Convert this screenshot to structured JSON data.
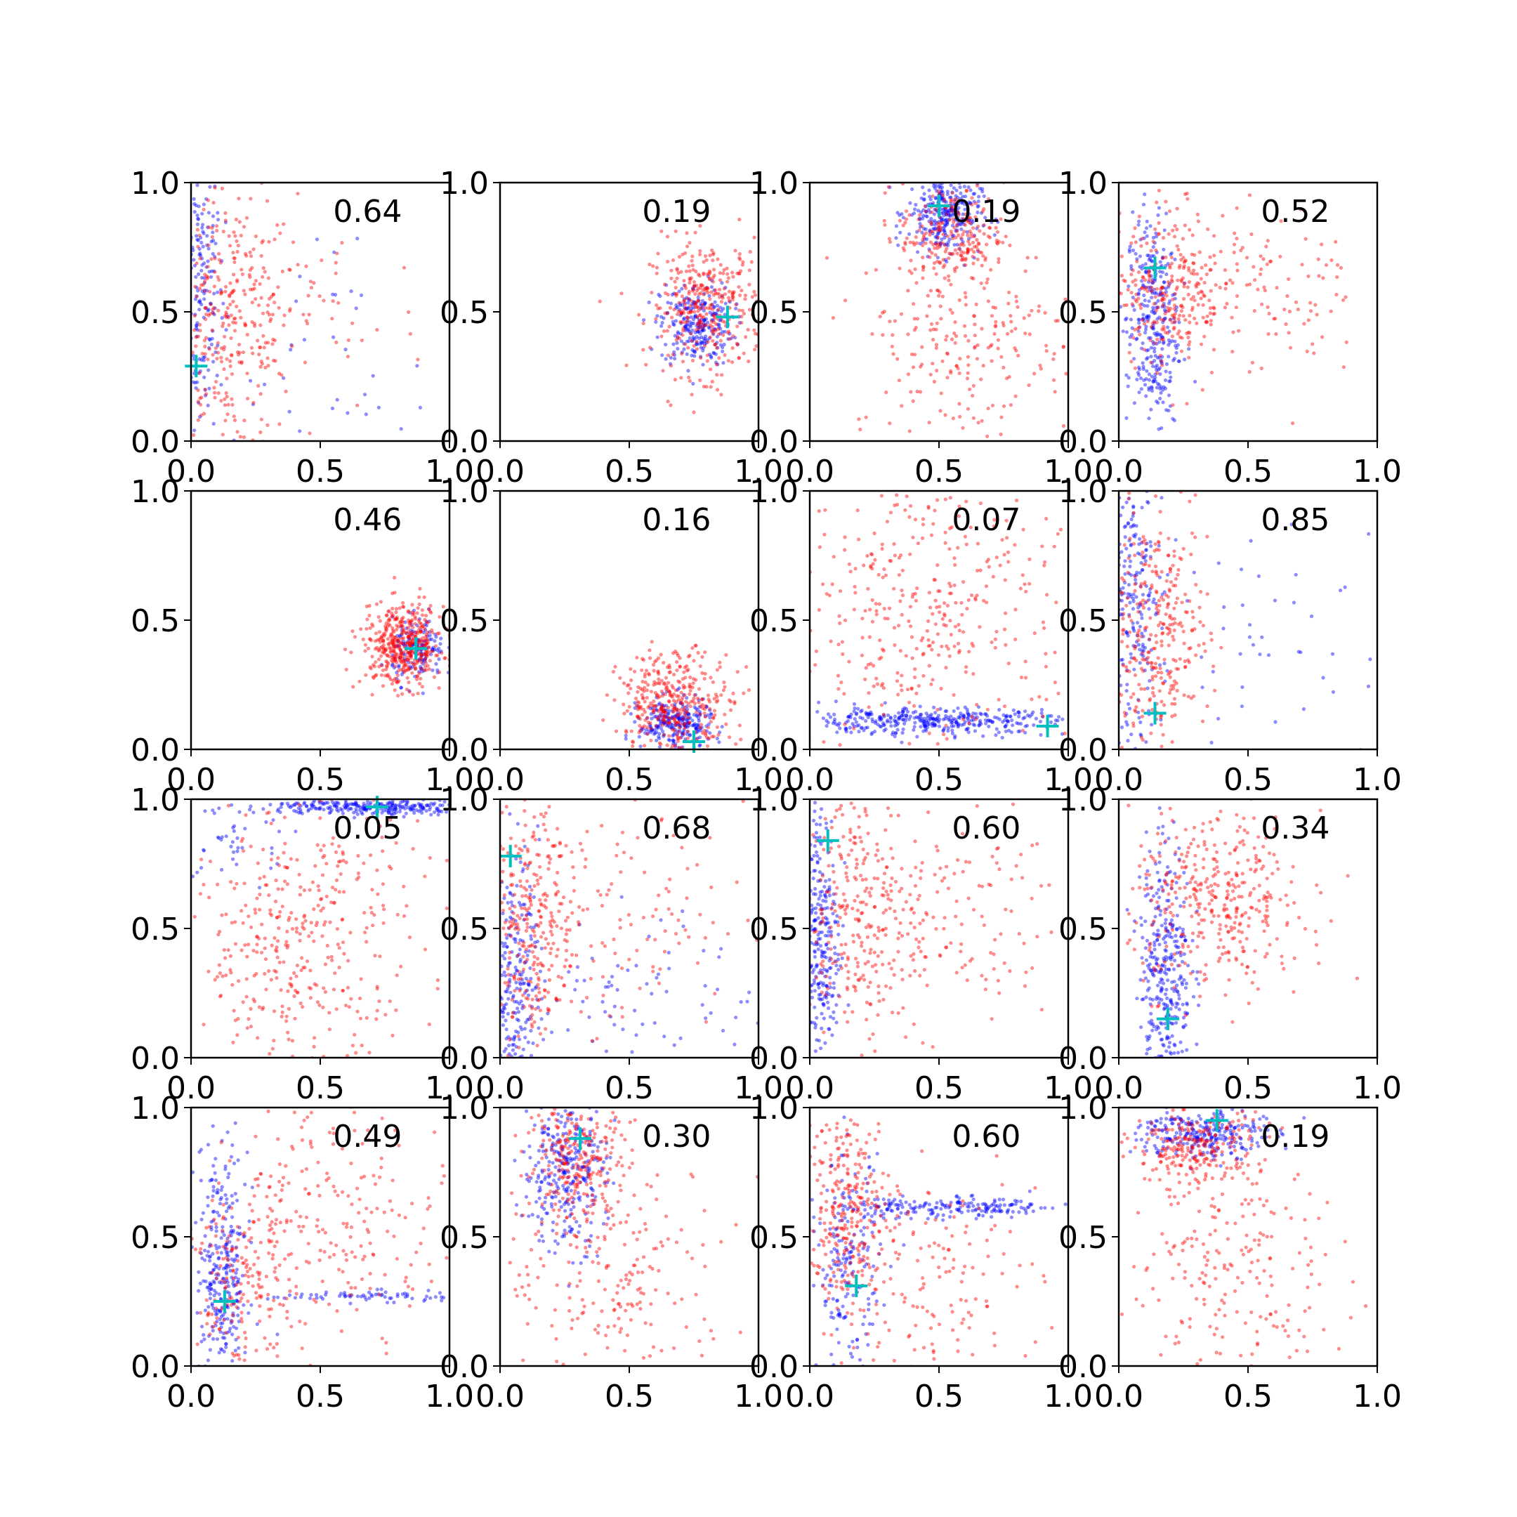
{
  "figure": {
    "background": "#ffffff",
    "grid_rows": 4,
    "grid_cols": 4
  },
  "chart_data": [
    {
      "type": "scatter",
      "xlim": [
        0,
        1
      ],
      "ylim": [
        0,
        1
      ],
      "xticks": [
        "0.0",
        "0.5",
        "1.0"
      ],
      "yticks": [
        "0.0",
        "0.5",
        "1.0"
      ],
      "grid": false,
      "annotation": "0.64",
      "marker": {
        "x": 0.02,
        "y": 0.29
      },
      "clusters": [
        {
          "series": "blue",
          "n": 220,
          "cx": 0.03,
          "cy": 0.6,
          "sx": 0.05,
          "sy": 0.3
        },
        {
          "series": "blue",
          "n": 40,
          "cx": 0.6,
          "cy": 0.35,
          "sx": 0.25,
          "sy": 0.25
        },
        {
          "series": "red",
          "n": 330,
          "cx": 0.15,
          "cy": 0.45,
          "sx": 0.13,
          "sy": 0.25
        },
        {
          "series": "red",
          "n": 40,
          "cx": 0.5,
          "cy": 0.5,
          "sx": 0.2,
          "sy": 0.2
        }
      ]
    },
    {
      "type": "scatter",
      "xlim": [
        0,
        1
      ],
      "ylim": [
        0,
        1
      ],
      "xticks": [
        "0.0",
        "0.5",
        "1.0"
      ],
      "yticks": [
        "0.0",
        "0.5",
        "1.0"
      ],
      "grid": false,
      "annotation": "0.19",
      "marker": {
        "x": 0.88,
        "y": 0.48
      },
      "clusters": [
        {
          "series": "blue",
          "n": 260,
          "cx": 0.76,
          "cy": 0.45,
          "sx": 0.07,
          "sy": 0.08
        },
        {
          "series": "red",
          "n": 360,
          "cx": 0.8,
          "cy": 0.52,
          "sx": 0.11,
          "sy": 0.13
        }
      ]
    },
    {
      "type": "scatter",
      "xlim": [
        0,
        1
      ],
      "ylim": [
        0,
        1
      ],
      "xticks": [
        "0.0",
        "0.5",
        "1.0"
      ],
      "yticks": [
        "0.0",
        "0.5",
        "1.0"
      ],
      "grid": false,
      "annotation": "0.19",
      "marker": {
        "x": 0.5,
        "y": 0.91
      },
      "clusters": [
        {
          "series": "blue",
          "n": 300,
          "cx": 0.52,
          "cy": 0.88,
          "sx": 0.07,
          "sy": 0.08
        },
        {
          "series": "red",
          "n": 220,
          "cx": 0.55,
          "cy": 0.8,
          "sx": 0.1,
          "sy": 0.1
        },
        {
          "series": "red",
          "n": 230,
          "cx": 0.6,
          "cy": 0.4,
          "sx": 0.22,
          "sy": 0.2
        }
      ]
    },
    {
      "type": "scatter",
      "xlim": [
        0,
        1
      ],
      "ylim": [
        0,
        1
      ],
      "xticks": [
        "0.0",
        "0.5",
        "1.0"
      ],
      "yticks": [
        "0.0",
        "0.5",
        "1.0"
      ],
      "grid": false,
      "annotation": "0.52",
      "marker": {
        "x": 0.14,
        "y": 0.67
      },
      "clusters": [
        {
          "series": "blue",
          "n": 320,
          "cx": 0.13,
          "cy": 0.45,
          "sx": 0.05,
          "sy": 0.22
        },
        {
          "series": "red",
          "n": 260,
          "cx": 0.2,
          "cy": 0.6,
          "sx": 0.1,
          "sy": 0.15
        },
        {
          "series": "red",
          "n": 120,
          "cx": 0.55,
          "cy": 0.6,
          "sx": 0.2,
          "sy": 0.17
        }
      ]
    },
    {
      "type": "scatter",
      "xlim": [
        0,
        1
      ],
      "ylim": [
        0,
        1
      ],
      "xticks": [
        "0.0",
        "0.5",
        "1.0"
      ],
      "yticks": [
        "0.0",
        "0.5",
        "1.0"
      ],
      "grid": false,
      "annotation": "0.46",
      "marker": {
        "x": 0.87,
        "y": 0.39
      },
      "clusters": [
        {
          "series": "blue",
          "n": 150,
          "cx": 0.88,
          "cy": 0.38,
          "sx": 0.05,
          "sy": 0.06
        },
        {
          "series": "red",
          "n": 450,
          "cx": 0.82,
          "cy": 0.4,
          "sx": 0.08,
          "sy": 0.08
        }
      ]
    },
    {
      "type": "scatter",
      "xlim": [
        0,
        1
      ],
      "ylim": [
        0,
        1
      ],
      "xticks": [
        "0.0",
        "0.5",
        "1.0"
      ],
      "yticks": [
        "0.0",
        "0.5",
        "1.0"
      ],
      "grid": false,
      "annotation": "0.16",
      "marker": {
        "x": 0.75,
        "y": 0.03
      },
      "clusters": [
        {
          "series": "blue",
          "n": 260,
          "cx": 0.68,
          "cy": 0.1,
          "sx": 0.07,
          "sy": 0.05
        },
        {
          "series": "red",
          "n": 380,
          "cx": 0.68,
          "cy": 0.18,
          "sx": 0.11,
          "sy": 0.1
        }
      ]
    },
    {
      "type": "scatter",
      "xlim": [
        0,
        1
      ],
      "ylim": [
        0,
        1
      ],
      "xticks": [
        "0.0",
        "0.5",
        "1.0"
      ],
      "yticks": [
        "0.0",
        "0.5",
        "1.0"
      ],
      "grid": false,
      "annotation": "0.07",
      "marker": {
        "x": 0.92,
        "y": 0.09
      },
      "clusters": [
        {
          "series": "blue",
          "n": 380,
          "cx": 0.45,
          "cy": 0.11,
          "sx": 0.28,
          "sy": 0.025
        },
        {
          "series": "red",
          "n": 420,
          "cx": 0.45,
          "cy": 0.55,
          "sx": 0.3,
          "sy": 0.3
        }
      ]
    },
    {
      "type": "scatter",
      "xlim": [
        0,
        1
      ],
      "ylim": [
        0,
        1
      ],
      "xticks": [
        "0.0",
        "0.5",
        "1.0"
      ],
      "yticks": [
        "0.0",
        "0.5",
        "1.0"
      ],
      "grid": false,
      "annotation": "0.85",
      "marker": {
        "x": 0.14,
        "y": 0.14
      },
      "clusters": [
        {
          "series": "blue",
          "n": 260,
          "cx": 0.05,
          "cy": 0.55,
          "sx": 0.06,
          "sy": 0.3
        },
        {
          "series": "blue",
          "n": 50,
          "cx": 0.6,
          "cy": 0.45,
          "sx": 0.25,
          "sy": 0.25
        },
        {
          "series": "red",
          "n": 320,
          "cx": 0.15,
          "cy": 0.45,
          "sx": 0.1,
          "sy": 0.22
        }
      ]
    },
    {
      "type": "scatter",
      "xlim": [
        0,
        1
      ],
      "ylim": [
        0,
        1
      ],
      "xticks": [
        "0.0",
        "0.5",
        "1.0"
      ],
      "yticks": [
        "0.0",
        "0.5",
        "1.0"
      ],
      "grid": false,
      "annotation": "0.05",
      "marker": {
        "x": 0.72,
        "y": 0.97
      },
      "clusters": [
        {
          "series": "blue",
          "n": 260,
          "cx": 0.7,
          "cy": 0.97,
          "sx": 0.2,
          "sy": 0.015
        },
        {
          "series": "blue",
          "n": 50,
          "cx": 0.15,
          "cy": 0.85,
          "sx": 0.1,
          "sy": 0.1
        },
        {
          "series": "red",
          "n": 420,
          "cx": 0.4,
          "cy": 0.45,
          "sx": 0.25,
          "sy": 0.28
        }
      ]
    },
    {
      "type": "scatter",
      "xlim": [
        0,
        1
      ],
      "ylim": [
        0,
        1
      ],
      "xticks": [
        "0.0",
        "0.5",
        "1.0"
      ],
      "yticks": [
        "0.0",
        "0.5",
        "1.0"
      ],
      "grid": false,
      "annotation": "0.68",
      "marker": {
        "x": 0.04,
        "y": 0.78
      },
      "clusters": [
        {
          "series": "blue",
          "n": 260,
          "cx": 0.05,
          "cy": 0.3,
          "sx": 0.05,
          "sy": 0.25
        },
        {
          "series": "blue",
          "n": 80,
          "cx": 0.5,
          "cy": 0.25,
          "sx": 0.25,
          "sy": 0.15
        },
        {
          "series": "red",
          "n": 330,
          "cx": 0.12,
          "cy": 0.5,
          "sx": 0.1,
          "sy": 0.25
        },
        {
          "series": "red",
          "n": 100,
          "cx": 0.5,
          "cy": 0.55,
          "sx": 0.22,
          "sy": 0.22
        }
      ]
    },
    {
      "type": "scatter",
      "xlim": [
        0,
        1
      ],
      "ylim": [
        0,
        1
      ],
      "xticks": [
        "0.0",
        "0.5",
        "1.0"
      ],
      "yticks": [
        "0.0",
        "0.5",
        "1.0"
      ],
      "grid": false,
      "annotation": "0.60",
      "marker": {
        "x": 0.07,
        "y": 0.84
      },
      "clusters": [
        {
          "series": "blue",
          "n": 300,
          "cx": 0.04,
          "cy": 0.45,
          "sx": 0.04,
          "sy": 0.3
        },
        {
          "series": "red",
          "n": 300,
          "cx": 0.18,
          "cy": 0.55,
          "sx": 0.13,
          "sy": 0.25
        },
        {
          "series": "red",
          "n": 120,
          "cx": 0.55,
          "cy": 0.55,
          "sx": 0.22,
          "sy": 0.22
        }
      ]
    },
    {
      "type": "scatter",
      "xlim": [
        0,
        1
      ],
      "ylim": [
        0,
        1
      ],
      "xticks": [
        "0.0",
        "0.5",
        "1.0"
      ],
      "yticks": [
        "0.0",
        "0.5",
        "1.0"
      ],
      "grid": false,
      "annotation": "0.34",
      "marker": {
        "x": 0.19,
        "y": 0.15
      },
      "clusters": [
        {
          "series": "blue",
          "n": 340,
          "cx": 0.18,
          "cy": 0.35,
          "sx": 0.05,
          "sy": 0.25
        },
        {
          "series": "red",
          "n": 380,
          "cx": 0.38,
          "cy": 0.6,
          "sx": 0.17,
          "sy": 0.17
        }
      ]
    },
    {
      "type": "scatter",
      "xlim": [
        0,
        1
      ],
      "ylim": [
        0,
        1
      ],
      "xticks": [
        "0.0",
        "0.5",
        "1.0"
      ],
      "yticks": [
        "0.0",
        "0.5",
        "1.0"
      ],
      "grid": false,
      "annotation": "0.49",
      "marker": {
        "x": 0.13,
        "y": 0.25
      },
      "clusters": [
        {
          "series": "blue",
          "n": 300,
          "cx": 0.12,
          "cy": 0.35,
          "sx": 0.05,
          "sy": 0.25
        },
        {
          "series": "blue",
          "n": 70,
          "cx": 0.7,
          "cy": 0.27,
          "sx": 0.2,
          "sy": 0.01
        },
        {
          "series": "red",
          "n": 200,
          "cx": 0.2,
          "cy": 0.3,
          "sx": 0.1,
          "sy": 0.2
        },
        {
          "series": "red",
          "n": 200,
          "cx": 0.6,
          "cy": 0.6,
          "sx": 0.22,
          "sy": 0.22
        }
      ]
    },
    {
      "type": "scatter",
      "xlim": [
        0,
        1
      ],
      "ylim": [
        0,
        1
      ],
      "xticks": [
        "0.0",
        "0.5",
        "1.0"
      ],
      "yticks": [
        "0.0",
        "0.5",
        "1.0"
      ],
      "grid": false,
      "annotation": "0.30",
      "marker": {
        "x": 0.31,
        "y": 0.88
      },
      "clusters": [
        {
          "series": "blue",
          "n": 300,
          "cx": 0.25,
          "cy": 0.75,
          "sx": 0.08,
          "sy": 0.15
        },
        {
          "series": "red",
          "n": 250,
          "cx": 0.3,
          "cy": 0.8,
          "sx": 0.1,
          "sy": 0.12
        },
        {
          "series": "red",
          "n": 200,
          "cx": 0.45,
          "cy": 0.35,
          "sx": 0.22,
          "sy": 0.22
        }
      ]
    },
    {
      "type": "scatter",
      "xlim": [
        0,
        1
      ],
      "ylim": [
        0,
        1
      ],
      "xticks": [
        "0.0",
        "0.5",
        "1.0"
      ],
      "yticks": [
        "0.0",
        "0.5",
        "1.0"
      ],
      "grid": false,
      "annotation": "0.60",
      "marker": {
        "x": 0.18,
        "y": 0.31
      },
      "clusters": [
        {
          "series": "blue",
          "n": 180,
          "cx": 0.15,
          "cy": 0.4,
          "sx": 0.06,
          "sy": 0.2
        },
        {
          "series": "blue",
          "n": 200,
          "cx": 0.55,
          "cy": 0.61,
          "sx": 0.25,
          "sy": 0.02
        },
        {
          "series": "red",
          "n": 280,
          "cx": 0.15,
          "cy": 0.6,
          "sx": 0.08,
          "sy": 0.2
        },
        {
          "series": "red",
          "n": 150,
          "cx": 0.45,
          "cy": 0.35,
          "sx": 0.22,
          "sy": 0.2
        }
      ]
    },
    {
      "type": "scatter",
      "xlim": [
        0,
        1
      ],
      "ylim": [
        0,
        1
      ],
      "xticks": [
        "0.0",
        "0.5",
        "1.0"
      ],
      "yticks": [
        "0.0",
        "0.5",
        "1.0"
      ],
      "grid": false,
      "annotation": "0.19",
      "marker": {
        "x": 0.38,
        "y": 0.95
      },
      "clusters": [
        {
          "series": "blue",
          "n": 280,
          "cx": 0.32,
          "cy": 0.9,
          "sx": 0.12,
          "sy": 0.05
        },
        {
          "series": "red",
          "n": 250,
          "cx": 0.3,
          "cy": 0.85,
          "sx": 0.12,
          "sy": 0.08
        },
        {
          "series": "red",
          "n": 220,
          "cx": 0.4,
          "cy": 0.35,
          "sx": 0.25,
          "sy": 0.22
        }
      ]
    }
  ],
  "colors": {
    "blue": "#0000ff",
    "red": "#ff0000",
    "marker": "#00bfbf",
    "axis": "#000000"
  }
}
